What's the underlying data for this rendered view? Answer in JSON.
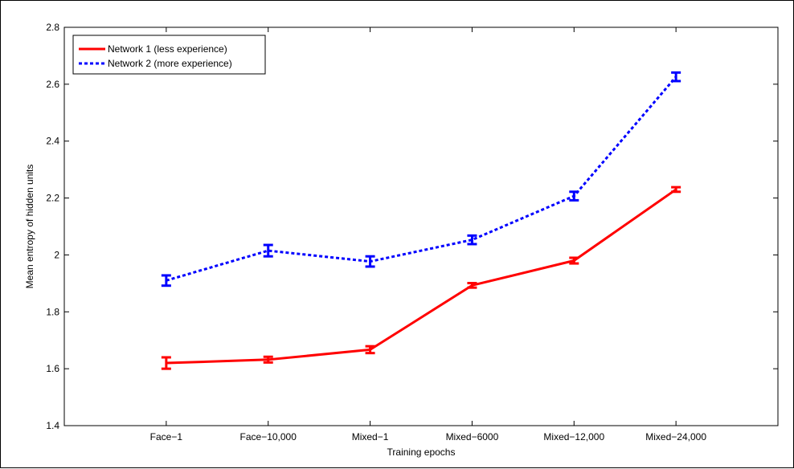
{
  "chart_data": {
    "type": "line",
    "title": "",
    "xlabel": "Training epochs",
    "ylabel": "Mean entropy of hidden units",
    "categories": [
      "Face−1",
      "Face−10,000",
      "Mixed−1",
      "Mixed−6000",
      "Mixed−12,000",
      "Mixed−24,000"
    ],
    "ylim": [
      1.4,
      2.8
    ],
    "yticks": [
      "1.4",
      "1.6",
      "1.8",
      "2",
      "2.2",
      "2.4",
      "2.6",
      "2.8"
    ],
    "grid": false,
    "legend_position": "top-left",
    "series": [
      {
        "name": "Network 1 (less experience)",
        "color": "#ff0000",
        "line_style": "solid",
        "values": [
          1.62,
          1.632,
          1.667,
          1.893,
          1.98,
          2.23
        ],
        "errors": [
          0.02,
          0.01,
          0.012,
          0.008,
          0.01,
          0.008
        ]
      },
      {
        "name": "Network 2 (more experience)",
        "color": "#0000ff",
        "line_style": "dotted",
        "values": [
          1.91,
          2.015,
          1.977,
          2.053,
          2.207,
          2.626
        ],
        "errors": [
          0.018,
          0.02,
          0.018,
          0.015,
          0.015,
          0.015
        ]
      }
    ]
  }
}
